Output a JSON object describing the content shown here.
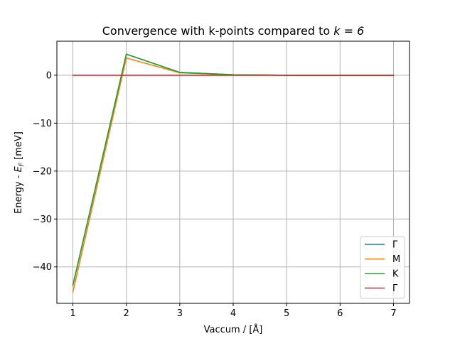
{
  "chart_data": {
    "type": "line",
    "title": "Convergence with k-points compared to k = 6",
    "xlabel": "Vaccum / [Å]",
    "ylabel": "Energy - E_F [meV]",
    "xlim": [
      0.7,
      7.3
    ],
    "ylim": [
      -47.6,
      7.1
    ],
    "xticks": [
      1,
      2,
      3,
      4,
      5,
      6,
      7
    ],
    "yticks": [
      0,
      -10,
      -20,
      -30,
      -40
    ],
    "ytick_labels": [
      "0",
      "−10",
      "−20",
      "−30",
      "−40"
    ],
    "grid": true,
    "legend_position": "lower-right",
    "x": [
      1,
      2,
      3,
      4,
      5,
      6,
      7
    ],
    "series": [
      {
        "name": "Γ",
        "color": "#1f77b4",
        "values": [
          -43.8,
          4.4,
          0.6,
          0.1,
          0.0,
          0.0,
          0.0
        ]
      },
      {
        "name": "M",
        "color": "#ff7f0e",
        "values": [
          -45.2,
          3.6,
          0.5,
          0.1,
          0.0,
          0.0,
          0.0
        ]
      },
      {
        "name": "K",
        "color": "#2ca02c",
        "values": [
          -43.8,
          4.4,
          0.6,
          0.1,
          0.0,
          0.0,
          0.0
        ]
      },
      {
        "name": "Γ",
        "color": "#d62728",
        "values": [
          0,
          0,
          0,
          0,
          0,
          0,
          0
        ]
      }
    ]
  }
}
